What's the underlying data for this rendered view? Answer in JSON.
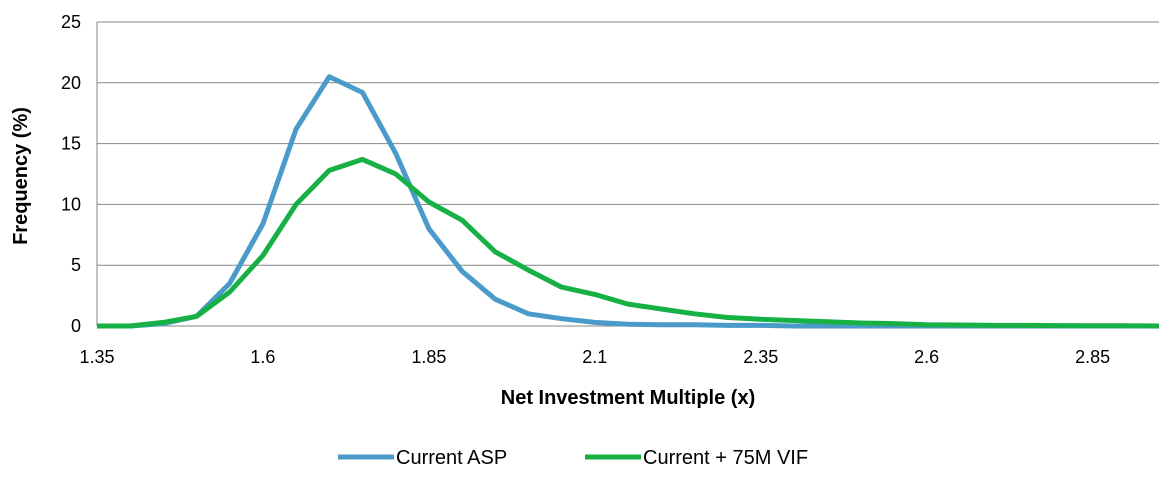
{
  "chart_data": {
    "type": "line",
    "title": "",
    "xlabel": "Net Investment Multiple (x)",
    "ylabel": "Frequency (%)",
    "xlim": [
      1.35,
      2.95
    ],
    "ylim": [
      0,
      25
    ],
    "x_ticks": [
      1.35,
      1.6,
      1.85,
      2.1,
      2.35,
      2.6,
      2.85
    ],
    "x_tick_labels": [
      "1.35",
      "1.6",
      "1.85",
      "2.1",
      "2.35",
      "2.6",
      "2.85"
    ],
    "y_ticks": [
      0,
      5,
      10,
      15,
      20,
      25
    ],
    "y_tick_labels": [
      "0",
      "5",
      "10",
      "15",
      "20",
      "25"
    ],
    "grid": "horizontal",
    "legend_position": "bottom",
    "x": [
      1.35,
      1.4,
      1.45,
      1.5,
      1.55,
      1.6,
      1.65,
      1.7,
      1.75,
      1.8,
      1.85,
      1.9,
      1.95,
      2.0,
      2.05,
      2.1,
      2.15,
      2.2,
      2.25,
      2.3,
      2.35,
      2.4,
      2.45,
      2.5,
      2.55,
      2.6,
      2.65,
      2.7,
      2.75,
      2.8,
      2.85,
      2.9,
      2.95
    ],
    "series": [
      {
        "name": "Current ASP",
        "color": "#4a9bc9",
        "values": [
          0,
          0,
          0.2,
          0.8,
          3.5,
          8.4,
          16.2,
          20.5,
          19.2,
          14.2,
          8.0,
          4.5,
          2.2,
          1.0,
          0.6,
          0.3,
          0.15,
          0.1,
          0.1,
          0.05,
          0.05,
          0,
          0,
          0,
          0,
          0,
          0,
          0,
          0,
          0,
          0,
          0,
          0
        ]
      },
      {
        "name": "Current + 75M VIF",
        "color": "#16b045",
        "values": [
          0,
          0,
          0.3,
          0.8,
          2.8,
          5.8,
          10.0,
          12.8,
          13.7,
          12.5,
          10.2,
          8.7,
          6.1,
          4.6,
          3.2,
          2.6,
          1.8,
          1.4,
          1.0,
          0.7,
          0.55,
          0.45,
          0.35,
          0.25,
          0.2,
          0.1,
          0.08,
          0.05,
          0.05,
          0.03,
          0.02,
          0.02,
          0
        ]
      }
    ]
  }
}
